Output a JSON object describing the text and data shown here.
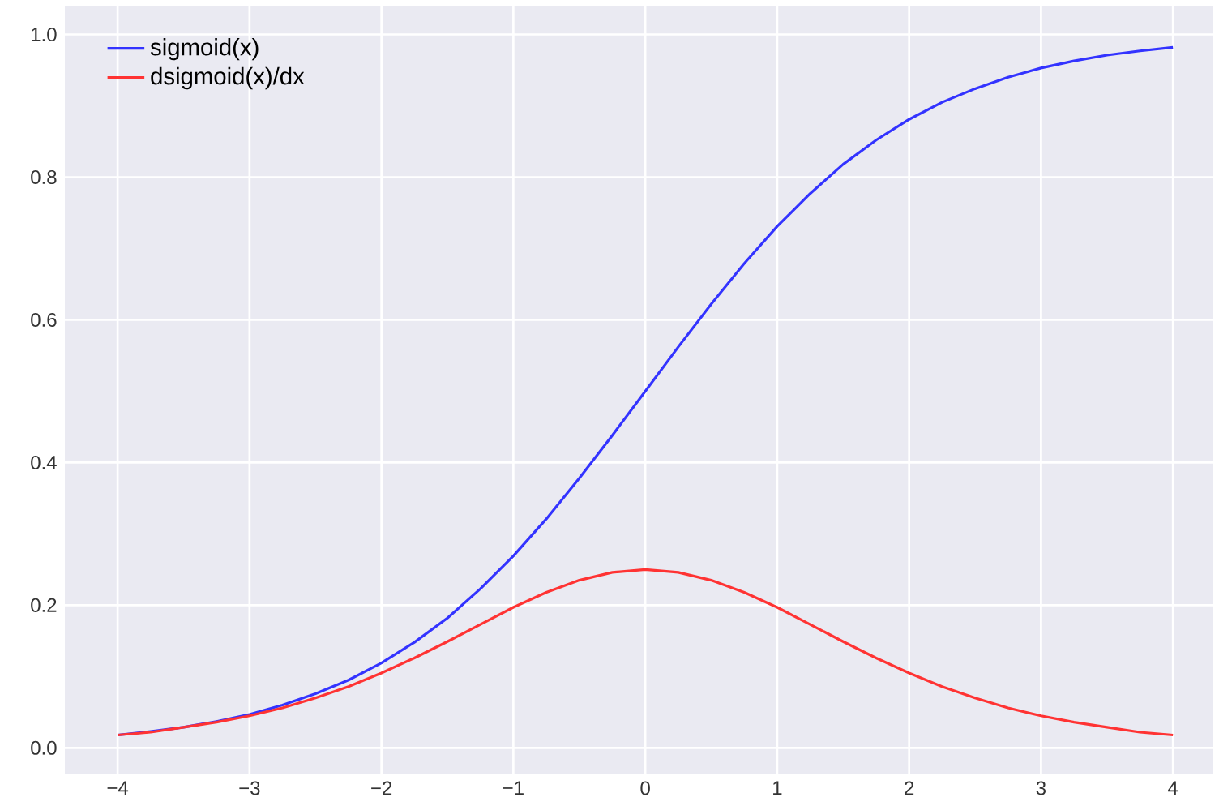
{
  "chart_data": {
    "type": "line",
    "x": [
      -4,
      -3.75,
      -3.5,
      -3.25,
      -3,
      -2.75,
      -2.5,
      -2.25,
      -2,
      -1.75,
      -1.5,
      -1.25,
      -1,
      -0.75,
      -0.5,
      -0.25,
      0,
      0.25,
      0.5,
      0.75,
      1,
      1.25,
      1.5,
      1.75,
      2,
      2.25,
      2.5,
      2.75,
      3,
      3.25,
      3.5,
      3.75,
      4
    ],
    "series": [
      {
        "name": "sigmoid(x)",
        "color": "#3333ff",
        "values": [
          0.018,
          0.023,
          0.029,
          0.037,
          0.047,
          0.06,
          0.076,
          0.095,
          0.119,
          0.148,
          0.182,
          0.223,
          0.269,
          0.321,
          0.378,
          0.438,
          0.5,
          0.562,
          0.622,
          0.679,
          0.731,
          0.777,
          0.818,
          0.852,
          0.881,
          0.905,
          0.924,
          0.94,
          0.953,
          0.963,
          0.971,
          0.977,
          0.982
        ]
      },
      {
        "name": "dsigmoid(x)/dx",
        "color": "#ff3333",
        "values": [
          0.018,
          0.022,
          0.029,
          0.036,
          0.045,
          0.056,
          0.07,
          0.086,
          0.105,
          0.126,
          0.149,
          0.173,
          0.197,
          0.218,
          0.235,
          0.246,
          0.25,
          0.246,
          0.235,
          0.218,
          0.197,
          0.173,
          0.149,
          0.126,
          0.105,
          0.086,
          0.07,
          0.056,
          0.045,
          0.036,
          0.029,
          0.022,
          0.018
        ]
      }
    ],
    "xlim": [
      -4.4,
      4.3
    ],
    "ylim": [
      -0.036,
      1.04
    ],
    "xticks": [
      {
        "value": -4,
        "label": "−4"
      },
      {
        "value": -3,
        "label": "−3"
      },
      {
        "value": -2,
        "label": "−2"
      },
      {
        "value": -1,
        "label": "−1"
      },
      0,
      1,
      2,
      3,
      4
    ],
    "yticks": [
      {
        "value": 0,
        "label": "0.0"
      },
      0.2,
      0.4,
      0.6,
      0.8,
      {
        "value": 1,
        "label": "1.0"
      }
    ],
    "grid": true,
    "legend": "top left"
  }
}
